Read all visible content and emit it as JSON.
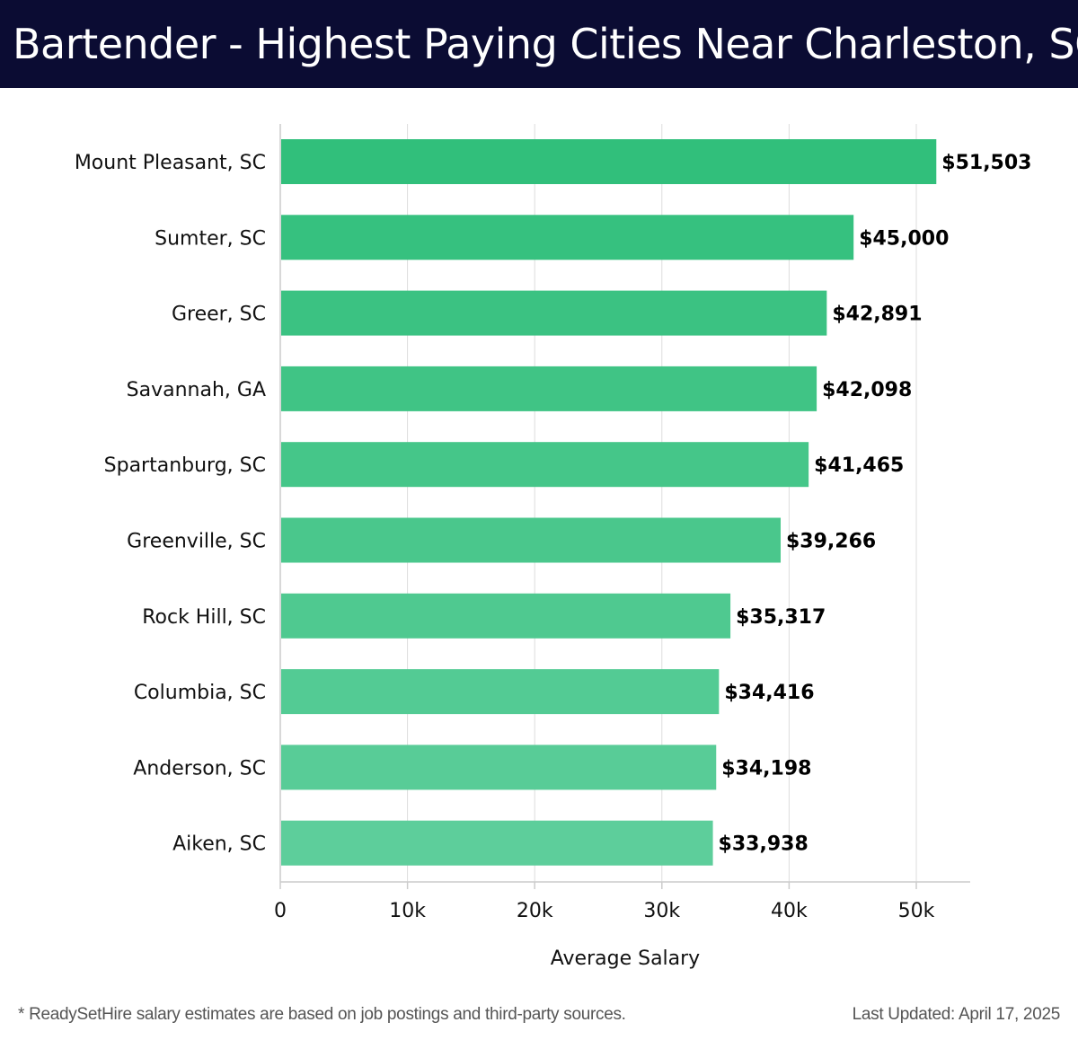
{
  "header": {
    "title": "Bartender - Highest Paying Cities Near Charleston, SC"
  },
  "footer": {
    "footnote": "* ReadySetHire salary estimates are based on job postings and third-party sources.",
    "last_updated": "Last Updated: April 17, 2025"
  },
  "chart_data": {
    "type": "bar",
    "orientation": "horizontal",
    "title": "Bartender - Highest Paying Cities Near Charleston, SC",
    "xlabel": "Average Salary",
    "ylabel": "",
    "xlim": [
      0,
      54000
    ],
    "grid": true,
    "categories": [
      "Mount Pleasant, SC",
      "Sumter, SC",
      "Greer, SC",
      "Savannah, GA",
      "Spartanburg, SC",
      "Greenville, SC",
      "Rock Hill, SC",
      "Columbia, SC",
      "Anderson, SC",
      "Aiken, SC"
    ],
    "values": [
      51503,
      45000,
      42891,
      42098,
      41465,
      39266,
      35317,
      34416,
      34198,
      33938
    ],
    "value_labels": [
      "$51,503",
      "$45,000",
      "$42,891",
      "$42,098",
      "$41,465",
      "$39,266",
      "$35,317",
      "$34,416",
      "$34,198",
      "$33,938"
    ],
    "x_ticks": [
      0,
      10000,
      20000,
      30000,
      40000,
      50000
    ],
    "x_tick_labels": [
      "0",
      "10k",
      "20k",
      "30k",
      "40k",
      "50k"
    ],
    "bar_color_top": "#2dbe78",
    "bar_color_bottom": "#5acd99"
  }
}
